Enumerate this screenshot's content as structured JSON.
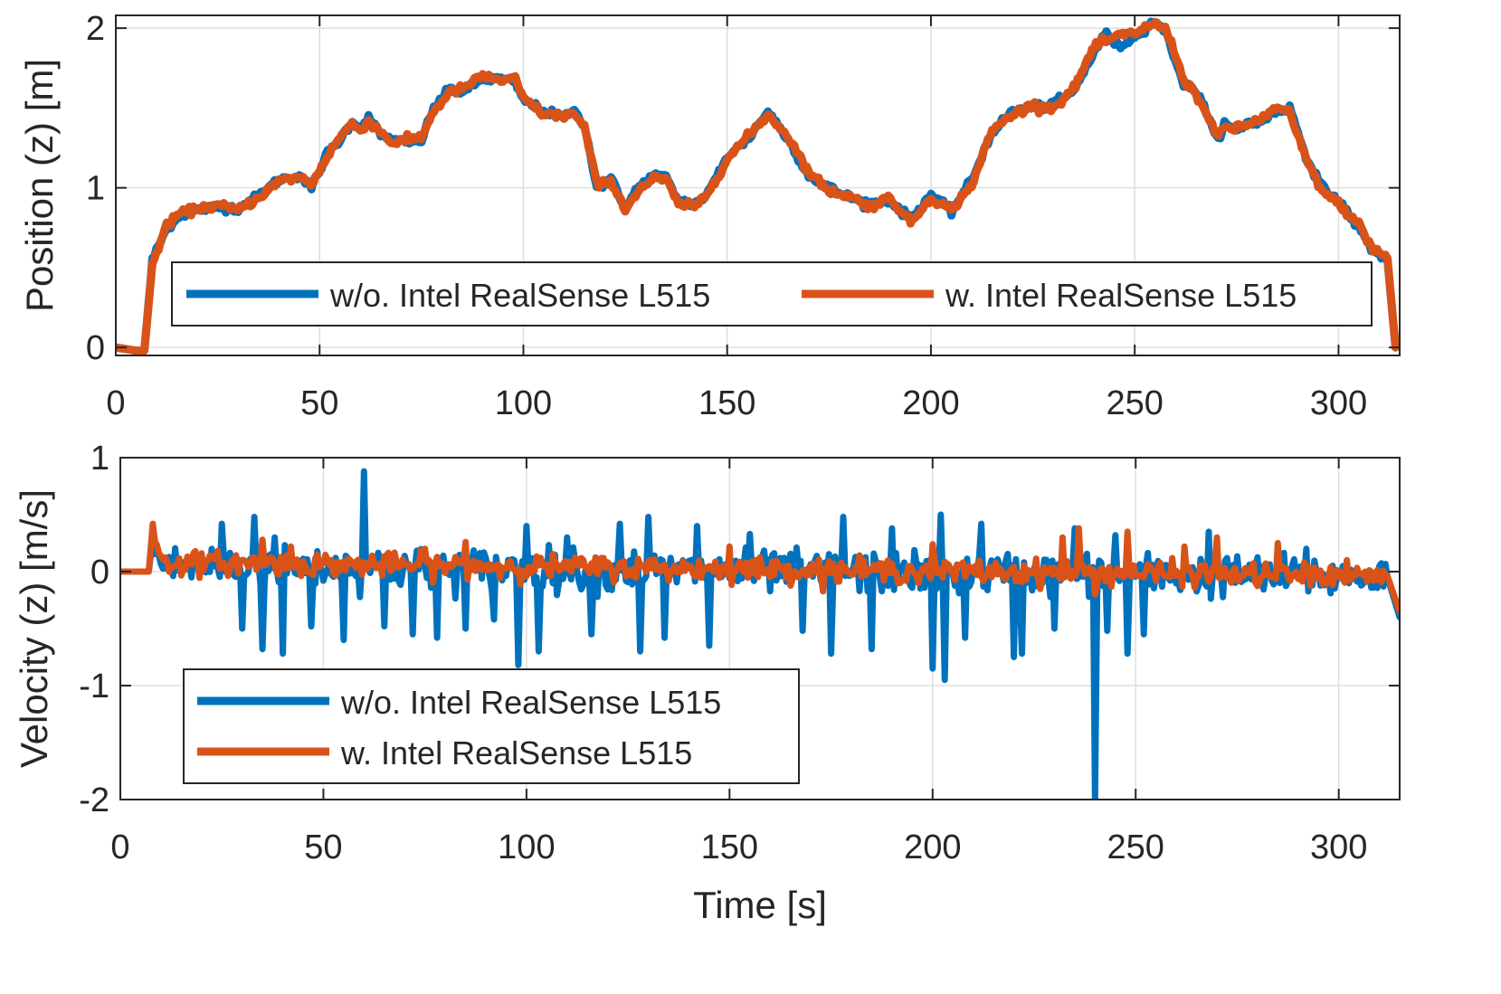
{
  "chart_data": [
    {
      "type": "line",
      "ylabel": "Position (z) [m]",
      "xlabel": "",
      "xlim": [
        0,
        315
      ],
      "ylim": [
        -0.05,
        2.08
      ],
      "xticks": [
        0,
        50,
        100,
        150,
        200,
        250,
        300
      ],
      "yticks": [
        0,
        1,
        2
      ],
      "xtick_labels": [
        "0",
        "50",
        "100",
        "150",
        "200",
        "250",
        "300"
      ],
      "ytick_labels": [
        "0",
        "1",
        "2"
      ],
      "grid": true,
      "legend": {
        "placement": "bottom, single row",
        "entries": [
          "w/o. Intel RealSense L515",
          "w. Intel RealSense L515"
        ]
      },
      "x": [
        0,
        5,
        7,
        9,
        12,
        15,
        20,
        25,
        30,
        35,
        40,
        45,
        48,
        52,
        55,
        58,
        60,
        62,
        65,
        68,
        72,
        75,
        78,
        82,
        85,
        90,
        95,
        98,
        100,
        105,
        110,
        112,
        115,
        118,
        122,
        125,
        128,
        132,
        135,
        138,
        142,
        145,
        150,
        155,
        160,
        165,
        170,
        175,
        180,
        185,
        190,
        195,
        200,
        205,
        210,
        215,
        220,
        225,
        230,
        235,
        240,
        243,
        246,
        250,
        255,
        258,
        262,
        266,
        270,
        272,
        275,
        278,
        280,
        285,
        288,
        292,
        296,
        300,
        305,
        308,
        312,
        314
      ],
      "series": [
        {
          "name": "w/o. Intel RealSense L515",
          "color": "#0072BD",
          "values": [
            0,
            -0.02,
            -0.02,
            0.55,
            0.72,
            0.82,
            0.86,
            0.88,
            0.87,
            0.95,
            1.05,
            1.08,
            1.0,
            1.22,
            1.3,
            1.42,
            1.38,
            1.44,
            1.33,
            1.3,
            1.28,
            1.3,
            1.5,
            1.62,
            1.6,
            1.68,
            1.68,
            1.66,
            1.55,
            1.48,
            1.44,
            1.49,
            1.4,
            1.0,
            1.05,
            0.87,
            1.0,
            1.08,
            1.06,
            0.92,
            0.9,
            0.95,
            1.2,
            1.3,
            1.48,
            1.3,
            1.08,
            1.0,
            0.94,
            0.9,
            0.92,
            0.8,
            0.96,
            0.85,
            1.05,
            1.35,
            1.48,
            1.5,
            1.52,
            1.6,
            1.85,
            1.97,
            1.88,
            1.95,
            2.05,
            1.95,
            1.65,
            1.58,
            1.3,
            1.4,
            1.35,
            1.42,
            1.4,
            1.48,
            1.5,
            1.2,
            1.0,
            0.92,
            0.75,
            0.62,
            0.55,
            0.0
          ]
        },
        {
          "name": "w. Intel RealSense L515",
          "color": "#D95319",
          "values": [
            0,
            -0.02,
            -0.02,
            0.52,
            0.74,
            0.83,
            0.87,
            0.89,
            0.86,
            0.94,
            1.04,
            1.07,
            1.02,
            1.2,
            1.32,
            1.4,
            1.36,
            1.42,
            1.35,
            1.28,
            1.3,
            1.32,
            1.48,
            1.6,
            1.62,
            1.7,
            1.67,
            1.68,
            1.56,
            1.46,
            1.45,
            1.47,
            1.38,
            1.02,
            1.03,
            0.86,
            0.98,
            1.06,
            1.05,
            0.9,
            0.88,
            0.96,
            1.18,
            1.32,
            1.46,
            1.32,
            1.1,
            0.98,
            0.95,
            0.88,
            0.94,
            0.78,
            0.94,
            0.86,
            1.02,
            1.36,
            1.46,
            1.52,
            1.5,
            1.62,
            1.88,
            1.92,
            1.95,
            1.97,
            2.03,
            1.98,
            1.68,
            1.55,
            1.32,
            1.38,
            1.37,
            1.4,
            1.42,
            1.5,
            1.47,
            1.18,
            0.98,
            0.9,
            0.77,
            0.63,
            0.56,
            0.0
          ]
        }
      ]
    },
    {
      "type": "line",
      "ylabel": "Velocity (z) [m/s]",
      "xlabel": "Time [s]",
      "xlim": [
        0,
        315
      ],
      "ylim": [
        -2,
        1
      ],
      "xticks": [
        0,
        50,
        100,
        150,
        200,
        250,
        300
      ],
      "yticks": [
        -2,
        -1,
        0,
        1
      ],
      "xtick_labels": [
        "0",
        "50",
        "100",
        "150",
        "200",
        "250",
        "300"
      ],
      "ytick_labels": [
        "-2",
        "-1",
        "0",
        "1"
      ],
      "grid": true,
      "legend": {
        "placement": "bottom-left, stacked",
        "entries": [
          "w/o. Intel RealSense L515",
          "w. Intel RealSense L515"
        ]
      },
      "series": [
        {
          "name": "w/o. Intel RealSense L515",
          "color": "#0072BD",
          "noise_std": 0.09,
          "baseline": [
            [
              0,
              0.0
            ],
            [
              7,
              0.0
            ],
            [
              8,
              0.3
            ],
            [
              10,
              0.05
            ],
            [
              312,
              -0.05
            ],
            [
              315,
              -0.4
            ]
          ],
          "spikes": [
            [
              25,
              0.42
            ],
            [
              30,
              -0.5
            ],
            [
              33,
              0.48
            ],
            [
              35,
              -0.68
            ],
            [
              38,
              0.3
            ],
            [
              40,
              -0.72
            ],
            [
              47,
              -0.48
            ],
            [
              55,
              -0.6
            ],
            [
              60,
              0.88
            ],
            [
              65,
              -0.48
            ],
            [
              72,
              -0.55
            ],
            [
              78,
              -0.58
            ],
            [
              85,
              -0.5
            ],
            [
              92,
              -0.42
            ],
            [
              98,
              -0.82
            ],
            [
              100,
              0.4
            ],
            [
              103,
              -0.7
            ],
            [
              110,
              0.3
            ],
            [
              116,
              -0.55
            ],
            [
              123,
              0.42
            ],
            [
              130,
              0.48
            ],
            [
              128,
              -0.7
            ],
            [
              134,
              -0.58
            ],
            [
              142,
              0.4
            ],
            [
              145,
              -0.65
            ],
            [
              155,
              0.33
            ],
            [
              168,
              -0.52
            ],
            [
              175,
              -0.72
            ],
            [
              178,
              0.48
            ],
            [
              185,
              -0.68
            ],
            [
              190,
              0.38
            ],
            [
              200,
              -0.85
            ],
            [
              202,
              0.5
            ],
            [
              203,
              -0.95
            ],
            [
              208,
              -0.58
            ],
            [
              212,
              0.42
            ],
            [
              220,
              -0.75
            ],
            [
              222,
              -0.72
            ],
            [
              230,
              -0.5
            ],
            [
              235,
              0.38
            ],
            [
              240,
              -2.0
            ],
            [
              243,
              -0.52
            ],
            [
              245,
              0.32
            ],
            [
              248,
              -0.72
            ],
            [
              252,
              -0.55
            ],
            [
              268,
              0.35
            ],
            [
              292,
              0.2
            ]
          ]
        },
        {
          "name": "w. Intel RealSense L515",
          "color": "#D95319",
          "noise_std": 0.05,
          "baseline": [
            [
              0,
              0.0
            ],
            [
              7,
              0.0
            ],
            [
              8,
              0.42
            ],
            [
              10,
              0.08
            ],
            [
              312,
              -0.04
            ],
            [
              315,
              -0.35
            ]
          ],
          "spikes": [
            [
              35,
              0.28
            ],
            [
              42,
              0.22
            ],
            [
              75,
              0.2
            ],
            [
              85,
              0.26
            ],
            [
              150,
              0.22
            ],
            [
              200,
              0.24
            ],
            [
              232,
              0.3
            ],
            [
              236,
              0.38
            ],
            [
              240,
              -0.2
            ],
            [
              248,
              0.35
            ],
            [
              262,
              0.22
            ],
            [
              270,
              0.3
            ],
            [
              285,
              0.25
            ]
          ]
        }
      ]
    }
  ]
}
